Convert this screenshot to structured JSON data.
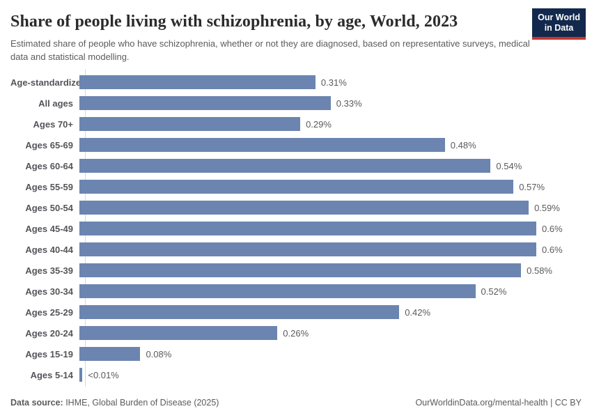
{
  "chart_data": {
    "type": "bar",
    "orientation": "horizontal",
    "title": "Share of people living with schizophrenia, by age, World, 2023",
    "subtitle": "Estimated share of people who have schizophrenia, whether or not they are diagnosed, based on representative surveys, medical data and statistical modelling.",
    "categories": [
      "Age-standardized",
      "All ages",
      "Ages 70+",
      "Ages 65-69",
      "Ages 60-64",
      "Ages 55-59",
      "Ages 50-54",
      "Ages 45-49",
      "Ages 40-44",
      "Ages 35-39",
      "Ages 30-34",
      "Ages 25-29",
      "Ages 20-24",
      "Ages 15-19",
      "Ages 5-14"
    ],
    "values": [
      0.31,
      0.33,
      0.29,
      0.48,
      0.54,
      0.57,
      0.59,
      0.6,
      0.6,
      0.58,
      0.52,
      0.42,
      0.26,
      0.08,
      0.004
    ],
    "value_labels": [
      "0.31%",
      "0.33%",
      "0.29%",
      "0.48%",
      "0.54%",
      "0.57%",
      "0.59%",
      "0.6%",
      "0.6%",
      "0.58%",
      "0.52%",
      "0.42%",
      "0.26%",
      "0.08%",
      "<0.01%"
    ],
    "xlim": [
      0,
      0.6
    ],
    "unit": "%",
    "grid": false,
    "legend": "none"
  },
  "logo": {
    "line1": "Our World",
    "line2": "in Data"
  },
  "footer": {
    "source_label": "Data source:",
    "source_text": " IHME, Global Burden of Disease (2025)",
    "right_text": "OurWorldinData.org/mental-health | CC BY"
  },
  "colors": {
    "bar": "#6b85b0",
    "logo_navy": "#12294d",
    "logo_red": "#c7352d",
    "title_text": "#2b2b2b",
    "muted_text": "#5b5b5b"
  }
}
